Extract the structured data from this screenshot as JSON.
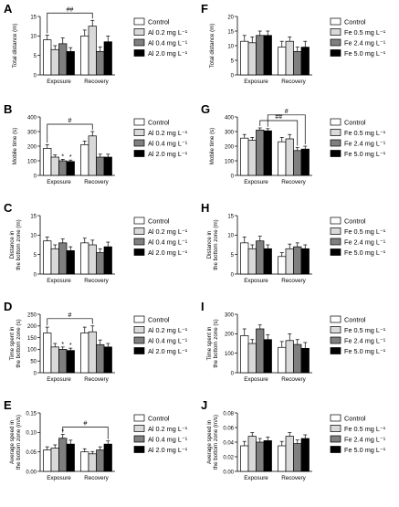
{
  "figure": {
    "legend_groups": {
      "al": [
        "Control",
        "Al 0.2 mg L⁻¹",
        "Al 0.4 mg L⁻¹",
        "Al 2.0 mg L⁻¹"
      ],
      "fe": [
        "Control",
        "Fe 0.5 mg L⁻¹",
        "Fe 2.4 mg L⁻¹",
        "Fe 5.0 mg L⁻¹"
      ]
    },
    "bar_fills": [
      "#ffffff",
      "#d9d9d9",
      "#7f7f7f",
      "#000000"
    ]
  },
  "chart_data": [
    {
      "panel": "A",
      "type": "bar",
      "legend": "al",
      "categories": [
        "Exposure",
        "Recovery"
      ],
      "ylabel": "Total distance (m)",
      "ylim": [
        0,
        15
      ],
      "yticks": [
        0,
        5,
        10,
        15
      ],
      "ytick_labels": [
        "0",
        "5",
        "10",
        "15"
      ],
      "series": [
        {
          "values": [
            9,
            10
          ],
          "errors": [
            1.2,
            1.5
          ]
        },
        {
          "values": [
            6.5,
            12.5
          ],
          "errors": [
            1,
            1.5
          ]
        },
        {
          "values": [
            8,
            6
          ],
          "errors": [
            1.5,
            1.2
          ]
        },
        {
          "values": [
            6,
            8.5
          ],
          "errors": [
            1,
            1.5
          ]
        }
      ],
      "annotations": [
        {
          "text": "##",
          "bracket": [
            [
              0,
              0
            ],
            [
              1,
              1
            ]
          ]
        }
      ]
    },
    {
      "panel": "B",
      "type": "bar",
      "legend": "al",
      "categories": [
        "Exposure",
        "Recovery"
      ],
      "ylabel": "Mobile time (s)",
      "ylim": [
        0,
        400
      ],
      "yticks": [
        0,
        100,
        200,
        300,
        400
      ],
      "ytick_labels": [
        "0",
        "100",
        "200",
        "300",
        "400"
      ],
      "series": [
        {
          "values": [
            185,
            210
          ],
          "errors": [
            25,
            25
          ]
        },
        {
          "values": [
            125,
            270
          ],
          "errors": [
            15,
            30
          ]
        },
        {
          "values": [
            100,
            125
          ],
          "errors": [
            10,
            20
          ]
        },
        {
          "values": [
            95,
            125
          ],
          "errors": [
            10,
            20
          ]
        }
      ],
      "annotations": [
        {
          "text": "#",
          "bracket": [
            [
              0,
              0
            ],
            [
              1,
              1
            ]
          ]
        },
        {
          "text": "*",
          "at": [
            0,
            2
          ]
        },
        {
          "text": "*",
          "at": [
            0,
            3
          ]
        }
      ]
    },
    {
      "panel": "C",
      "type": "bar",
      "legend": "al",
      "categories": [
        "Exposure",
        "Recovery"
      ],
      "ylabel": "Distance in\nthe bottom zone (m)",
      "ylim": [
        0,
        15
      ],
      "yticks": [
        0,
        5,
        10,
        15
      ],
      "ytick_labels": [
        "0",
        "5",
        "10",
        "15"
      ],
      "series": [
        {
          "values": [
            8.5,
            8
          ],
          "errors": [
            1,
            1.2
          ]
        },
        {
          "values": [
            6.5,
            7.5
          ],
          "errors": [
            1,
            1.2
          ]
        },
        {
          "values": [
            8,
            5.5
          ],
          "errors": [
            1,
            1
          ]
        },
        {
          "values": [
            6,
            7
          ],
          "errors": [
            1,
            1.2
          ]
        }
      ],
      "annotations": []
    },
    {
      "panel": "D",
      "type": "bar",
      "legend": "al",
      "categories": [
        "Exposure",
        "Recovery"
      ],
      "ylabel": "Time spent in\nthe bottom zone (s)",
      "ylim": [
        0,
        250
      ],
      "yticks": [
        0,
        50,
        100,
        150,
        200,
        250
      ],
      "ytick_labels": [
        "0",
        "50",
        "100",
        "150",
        "200",
        "250"
      ],
      "series": [
        {
          "values": [
            170,
            170
          ],
          "errors": [
            25,
            25
          ]
        },
        {
          "values": [
            110,
            175
          ],
          "errors": [
            15,
            25
          ]
        },
        {
          "values": [
            100,
            120
          ],
          "errors": [
            10,
            20
          ]
        },
        {
          "values": [
            95,
            110
          ],
          "errors": [
            10,
            15
          ]
        }
      ],
      "annotations": [
        {
          "text": "#",
          "bracket": [
            [
              0,
              0
            ],
            [
              1,
              1
            ]
          ]
        },
        {
          "text": "*",
          "at": [
            0,
            2
          ]
        },
        {
          "text": "*",
          "at": [
            0,
            3
          ]
        }
      ]
    },
    {
      "panel": "E",
      "type": "bar",
      "legend": "al",
      "categories": [
        "Exposure",
        "Recovery"
      ],
      "ylabel": "Average speed in\nthe bottom zone (m/s)",
      "ylim": [
        0,
        0.15
      ],
      "yticks": [
        0,
        0.05,
        0.1,
        0.15
      ],
      "ytick_labels": [
        "0.00",
        "0.05",
        "0.10",
        "0.15"
      ],
      "series": [
        {
          "values": [
            0.055,
            0.05
          ],
          "errors": [
            0.008,
            0.008
          ]
        },
        {
          "values": [
            0.06,
            0.045
          ],
          "errors": [
            0.008,
            0.006
          ]
        },
        {
          "values": [
            0.085,
            0.055
          ],
          "errors": [
            0.01,
            0.008
          ]
        },
        {
          "values": [
            0.07,
            0.07
          ],
          "errors": [
            0.01,
            0.008
          ]
        }
      ],
      "annotations": [
        {
          "text": "#",
          "bracket": [
            [
              0,
              2
            ],
            [
              1,
              3
            ]
          ]
        },
        {
          "text": "*",
          "at": [
            0,
            2
          ]
        }
      ]
    },
    {
      "panel": "F",
      "type": "bar",
      "legend": "fe",
      "categories": [
        "Exposure",
        "Recovery"
      ],
      "ylabel": "Total distance (m)",
      "ylim": [
        0,
        20
      ],
      "yticks": [
        0,
        5,
        10,
        15,
        20
      ],
      "ytick_labels": [
        "0",
        "5",
        "10",
        "15",
        "20"
      ],
      "series": [
        {
          "values": [
            11.5,
            9.5
          ],
          "errors": [
            2,
            2
          ]
        },
        {
          "values": [
            11,
            11.5
          ],
          "errors": [
            2,
            1.5
          ]
        },
        {
          "values": [
            13.5,
            8
          ],
          "errors": [
            1.5,
            1.5
          ]
        },
        {
          "values": [
            13.5,
            9.5
          ],
          "errors": [
            1.5,
            2
          ]
        }
      ],
      "annotations": []
    },
    {
      "panel": "G",
      "type": "bar",
      "legend": "fe",
      "categories": [
        "Exposure",
        "Recovery"
      ],
      "ylabel": "Mobile time (s)",
      "ylim": [
        0,
        400
      ],
      "yticks": [
        0,
        100,
        200,
        300,
        400
      ],
      "ytick_labels": [
        "0",
        "100",
        "200",
        "300",
        "400"
      ],
      "series": [
        {
          "values": [
            255,
            230
          ],
          "errors": [
            25,
            30
          ]
        },
        {
          "values": [
            240,
            250
          ],
          "errors": [
            20,
            30
          ]
        },
        {
          "values": [
            310,
            170
          ],
          "errors": [
            15,
            20
          ]
        },
        {
          "values": [
            305,
            180
          ],
          "errors": [
            15,
            20
          ]
        }
      ],
      "annotations": [
        {
          "text": "##",
          "bracket": [
            [
              0,
              2
            ],
            [
              1,
              2
            ]
          ]
        },
        {
          "text": "#",
          "bracket": [
            [
              0,
              3
            ],
            [
              1,
              3
            ]
          ]
        }
      ]
    },
    {
      "panel": "H",
      "type": "bar",
      "legend": "fe",
      "categories": [
        "Exposure",
        "Recovery"
      ],
      "ylabel": "Distance in\nthe bottom zone (m)",
      "ylim": [
        0,
        15
      ],
      "yticks": [
        0,
        5,
        10,
        15
      ],
      "ytick_labels": [
        "0",
        "5",
        "10",
        "15"
      ],
      "series": [
        {
          "values": [
            8,
            4.5
          ],
          "errors": [
            1.5,
            1
          ]
        },
        {
          "values": [
            6.5,
            6.5
          ],
          "errors": [
            1,
            1.2
          ]
        },
        {
          "values": [
            8.5,
            7
          ],
          "errors": [
            1.2,
            1
          ]
        },
        {
          "values": [
            6.5,
            6.5
          ],
          "errors": [
            1,
            1
          ]
        }
      ],
      "annotations": []
    },
    {
      "panel": "I",
      "type": "bar",
      "legend": "fe",
      "categories": [
        "Exposure",
        "Recovery"
      ],
      "ylabel": "Time spent in\nthe bottom zone (s)",
      "ylim": [
        0,
        300
      ],
      "yticks": [
        0,
        100,
        200,
        300
      ],
      "ytick_labels": [
        "0",
        "100",
        "200",
        "300"
      ],
      "series": [
        {
          "values": [
            190,
            130
          ],
          "errors": [
            35,
            30
          ]
        },
        {
          "values": [
            150,
            165
          ],
          "errors": [
            20,
            35
          ]
        },
        {
          "values": [
            225,
            145
          ],
          "errors": [
            20,
            25
          ]
        },
        {
          "values": [
            170,
            125
          ],
          "errors": [
            25,
            30
          ]
        }
      ],
      "annotations": []
    },
    {
      "panel": "J",
      "type": "bar",
      "legend": "fe",
      "categories": [
        "Exposure",
        "Recovery"
      ],
      "ylabel": "Average speed in\nthe bottom zone (m/s)",
      "ylim": [
        0,
        0.08
      ],
      "yticks": [
        0,
        0.02,
        0.04,
        0.06,
        0.08
      ],
      "ytick_labels": [
        "0.00",
        "0.02",
        "0.04",
        "0.06",
        "0.08"
      ],
      "series": [
        {
          "values": [
            0.035,
            0.035
          ],
          "errors": [
            0.006,
            0.006
          ]
        },
        {
          "values": [
            0.048,
            0.048
          ],
          "errors": [
            0.005,
            0.005
          ]
        },
        {
          "values": [
            0.04,
            0.038
          ],
          "errors": [
            0.005,
            0.005
          ]
        },
        {
          "values": [
            0.042,
            0.045
          ],
          "errors": [
            0.005,
            0.005
          ]
        }
      ],
      "annotations": []
    }
  ]
}
